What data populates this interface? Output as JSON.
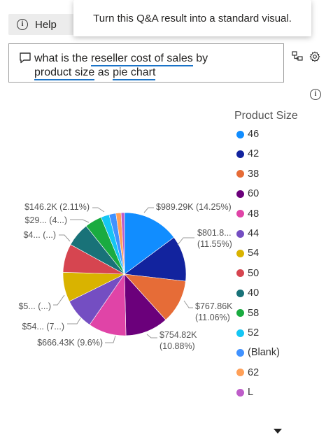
{
  "toolbar": {
    "help_label": "Help"
  },
  "tooltip": {
    "text": "Turn this Q&A result into a standard visual."
  },
  "qa": {
    "line1": [
      "what is the ",
      "reseller cost of sales",
      " by"
    ],
    "line2": [
      "product size",
      " as ",
      "pie chart"
    ]
  },
  "icons": {
    "chat": "chat-bubble-icon",
    "convert": "convert-visual-icon",
    "settings": "gear-icon",
    "info": "info-icon",
    "help": "info-icon",
    "more": "caret-down-icon"
  },
  "chart_data": {
    "type": "pie",
    "legend_title": "Product Size",
    "legend_position": "right",
    "slices": [
      {
        "name": "46",
        "value": 989.29,
        "percent": 14.25,
        "color": "#118dff",
        "label": "$989.29K (14.25%)"
      },
      {
        "name": "42",
        "value": 801.8,
        "percent": 11.55,
        "color": "#12239e",
        "label": "$801.8... (11.55%)"
      },
      {
        "name": "38",
        "value": 767.86,
        "percent": 11.06,
        "color": "#e66c37",
        "label": "$767.86K (11.06%)"
      },
      {
        "name": "60",
        "value": 754.82,
        "percent": 10.88,
        "color": "#6b007b",
        "label": "$754.82K (10.88%)"
      },
      {
        "name": "48",
        "value": 666.43,
        "percent": 9.6,
        "color": "#e044a7",
        "label": "$666.43K (9.6%)"
      },
      {
        "name": "44",
        "value": 540,
        "percent": 7.8,
        "color": "#744ec2",
        "label": "$54... (7...)"
      },
      {
        "name": "54",
        "value": 520,
        "percent": 7.5,
        "color": "#d9b300",
        "label": "$5... (...)"
      },
      {
        "name": "50",
        "value": 500,
        "percent": 7.2,
        "color": "#d64550",
        "label": ""
      },
      {
        "name": "40",
        "value": 420,
        "percent": 6.0,
        "color": "#197278",
        "label": "$4... (...)"
      },
      {
        "name": "58",
        "value": 300,
        "percent": 4.3,
        "color": "#1aab40",
        "label": "$29... (4...)"
      },
      {
        "name": "52",
        "value": 146.2,
        "percent": 2.11,
        "color": "#15c6f4",
        "label": "$146.2K (2.11%)"
      },
      {
        "name": "(Blank)",
        "value": 120,
        "percent": 1.7,
        "color": "#4092ff",
        "label": ""
      },
      {
        "name": "62",
        "value": 90,
        "percent": 1.3,
        "color": "#ffa058",
        "label": ""
      },
      {
        "name": "L",
        "value": 60,
        "percent": 0.9,
        "color": "#be5dc9",
        "label": ""
      }
    ]
  },
  "visible_labels": [
    {
      "lines": [
        "$989.29K (14.25%)"
      ]
    },
    {
      "lines": [
        "$801.8...",
        "(11.55%)"
      ]
    },
    {
      "lines": [
        "$767.86K",
        "(11.06%)"
      ]
    },
    {
      "lines": [
        "$754.82K",
        "(10.88%)"
      ]
    },
    {
      "lines": [
        "$666.43K (9.6%)"
      ]
    },
    {
      "lines": [
        "$54... (7...)"
      ]
    },
    {
      "lines": [
        "$5... (...)"
      ]
    },
    {
      "lines": [
        "$4... (...)"
      ]
    },
    {
      "lines": [
        "$29... (4...)"
      ]
    },
    {
      "lines": [
        "$146.2K (2.11%)"
      ]
    }
  ]
}
